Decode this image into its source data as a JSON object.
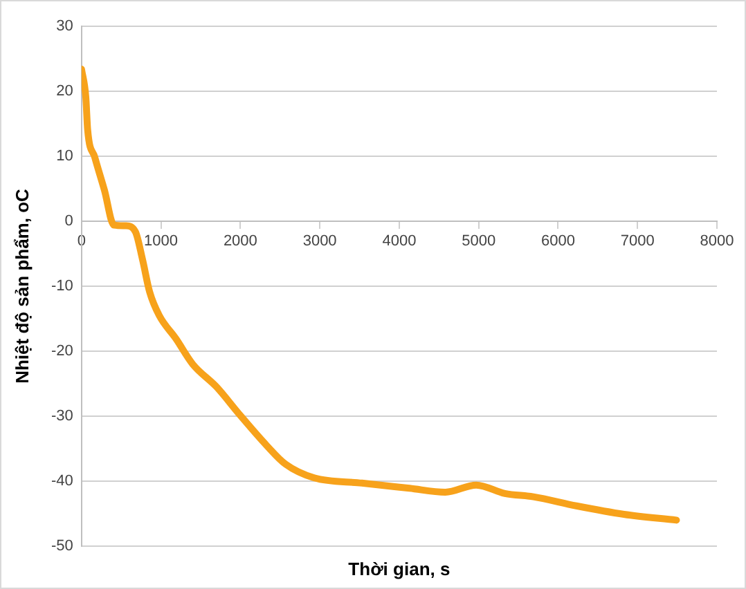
{
  "chart_data": {
    "type": "line",
    "xlabel": "Thời gian, s",
    "ylabel": "Nhiệt độ sản phẩm, oC",
    "x": [
      0,
      54,
      77,
      168,
      288,
      408,
      558,
      678,
      768,
      858,
      978,
      1190,
      1400,
      1700,
      2000,
      2330,
      2570,
      2930,
      3530,
      4130,
      4580,
      4970,
      5330,
      5690,
      6230,
      6830,
      7490
    ],
    "series": [
      {
        "color": "#f7a21b",
        "values": [
          23.4,
          19.1,
          14.1,
          9.8,
          4.8,
          -0.6,
          -0.7,
          -1.6,
          -5.9,
          -10.9,
          -14.5,
          -18.1,
          -22.0,
          -25.5,
          -29.9,
          -34.5,
          -37.4,
          -39.5,
          -40.3,
          -41.1,
          -41.7,
          -40.6,
          -41.9,
          -42.4,
          -43.8,
          -45.1,
          -46.0
        ]
      }
    ],
    "xlim": [
      0,
      8000
    ],
    "xticks": [
      0,
      1000,
      2000,
      3000,
      4000,
      5000,
      6000,
      7000,
      8000
    ],
    "ylim": [
      -50,
      30
    ],
    "yticks": [
      -50,
      -40,
      -30,
      -20,
      -10,
      0,
      10,
      20,
      30
    ],
    "grid": "y",
    "legend": false,
    "marker": "none",
    "line_style": "solid"
  }
}
